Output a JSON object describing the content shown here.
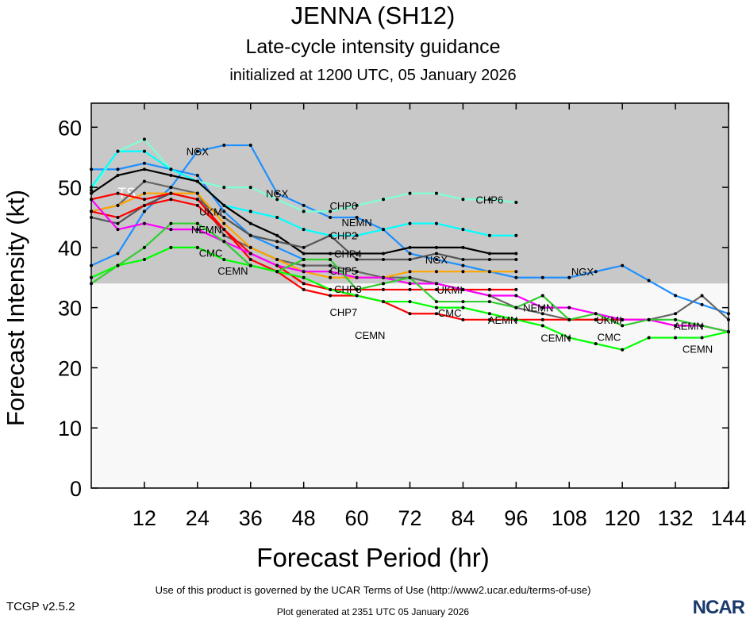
{
  "chart_data": {
    "type": "line",
    "title": "JENNA (SH12)",
    "subtitle": "Late-cycle intensity guidance",
    "subtitle2": "initialized at 1200 UTC, 05 January 2026",
    "xlabel": "Forecast Period (hr)",
    "ylabel": "Forecast Intensity (kt)",
    "xlim": [
      0,
      144
    ],
    "ylim": [
      0,
      64
    ],
    "xticks": [
      12,
      24,
      36,
      48,
      60,
      72,
      84,
      96,
      108,
      120,
      132,
      144
    ],
    "yticks": [
      0,
      10,
      20,
      30,
      40,
      50,
      60
    ],
    "x_step_hours": 6,
    "threshold": {
      "value": 34,
      "label": "TS",
      "above_color": "#c8c8c8",
      "below_color": "#f8f8f8"
    },
    "series": [
      {
        "name": "NGX",
        "color": "#1e90ff",
        "values": [
          37,
          39,
          46,
          50,
          56,
          57,
          57,
          49,
          47,
          45,
          45,
          43,
          39,
          38,
          37,
          36,
          35,
          35,
          35,
          36,
          37,
          34.5,
          32,
          30.5,
          29
        ],
        "label_hours": [
          24,
          42,
          78,
          111
        ]
      },
      {
        "name": "UKM",
        "color": "#1e90ff",
        "values": [
          53,
          53,
          54,
          53,
          52,
          46,
          42,
          40,
          38
        ],
        "label_hours": [
          27
        ]
      },
      {
        "name": "CHP6",
        "color": "#7fffd4",
        "values": [
          49.5,
          56,
          58,
          53,
          51,
          50,
          50,
          48,
          46,
          46,
          47,
          48,
          49,
          49,
          48,
          48,
          47.5
        ],
        "label_hours": [
          57,
          90
        ]
      },
      {
        "name": "CHP2",
        "color": "#00ffff",
        "values": [
          50,
          56,
          56,
          53,
          51,
          47,
          46,
          45,
          43,
          42,
          42,
          43,
          44,
          44,
          43,
          42,
          42
        ],
        "label_hours": [
          57
        ]
      },
      {
        "name": "CHP4",
        "color": "#000000",
        "values": [
          49,
          52,
          53,
          52,
          51,
          47,
          44,
          42,
          39,
          39,
          39,
          39,
          40,
          40,
          40,
          39,
          39
        ],
        "label_hours": [
          58
        ]
      },
      {
        "name": "CHP5",
        "color": "#555555",
        "values": [
          45,
          44,
          47,
          49,
          48,
          45,
          42,
          41,
          40,
          42,
          38,
          38,
          38,
          39,
          38,
          38,
          38
        ],
        "label_hours": [
          57
        ]
      },
      {
        "name": "UKMI",
        "color": "#666666",
        "values": [
          46,
          47,
          51,
          50,
          49,
          42,
          40,
          38,
          37,
          37,
          36,
          35,
          35,
          34,
          33,
          32,
          30,
          29,
          28,
          28,
          28,
          28,
          29,
          32,
          28
        ],
        "label_hours": [
          81,
          117
        ]
      },
      {
        "name": "CHP3",
        "color": "#ffa500",
        "values": [
          46,
          47,
          49,
          49,
          49,
          44,
          40,
          38,
          36,
          35,
          35,
          35,
          36,
          36,
          36,
          36,
          36
        ],
        "label_hours": [
          58
        ]
      },
      {
        "name": "CHP7",
        "color": "#ff0000",
        "values": [
          48,
          49,
          48,
          49,
          48,
          43,
          39,
          37,
          34,
          33,
          33,
          33,
          33,
          33,
          33,
          33,
          33
        ],
        "label_hours": [
          57
        ]
      },
      {
        "name": "AEMN",
        "color": "#ff0000",
        "values": [
          46,
          45,
          47,
          48,
          47,
          43,
          38,
          36,
          33,
          32,
          32,
          31,
          29,
          29,
          28,
          28,
          28,
          28,
          28,
          28,
          28,
          28,
          27,
          27,
          26
        ],
        "label_hours": [
          93,
          135
        ]
      },
      {
        "name": "NEMN",
        "color": "#ff00ff",
        "values": [
          48,
          43,
          44,
          43,
          43,
          41,
          39,
          37,
          36,
          36,
          35,
          35,
          34,
          34,
          33,
          32,
          32,
          30,
          30,
          29,
          28,
          28,
          27,
          27,
          26
        ],
        "label_hours": [
          26,
          60,
          101
        ]
      },
      {
        "name": "CMC",
        "color": "#32cd32",
        "values": [
          34,
          37,
          40,
          44,
          44,
          41,
          37,
          36,
          38,
          38,
          33,
          34,
          35,
          31,
          31,
          31,
          30,
          32,
          28,
          29,
          27,
          28,
          28,
          27,
          26
        ],
        "label_hours": [
          27,
          81,
          117
        ]
      },
      {
        "name": "CEMN",
        "color": "#00ff00",
        "values": [
          35,
          37,
          38,
          40,
          40,
          38,
          37,
          36,
          35,
          33,
          32,
          31,
          31,
          30,
          30,
          29,
          28,
          27,
          25,
          24,
          23,
          25,
          25,
          25,
          26
        ],
        "label_hours": [
          32,
          63,
          105,
          137
        ]
      }
    ]
  },
  "footer": {
    "terms": "Use of this product is governed by the UCAR Terms of Use (http://www2.ucar.edu/terms-of-use)",
    "version": "TCGP v2.5.2",
    "generated": "Plot generated at 2351 UTC   05 January 2026",
    "logo": "NCAR"
  }
}
